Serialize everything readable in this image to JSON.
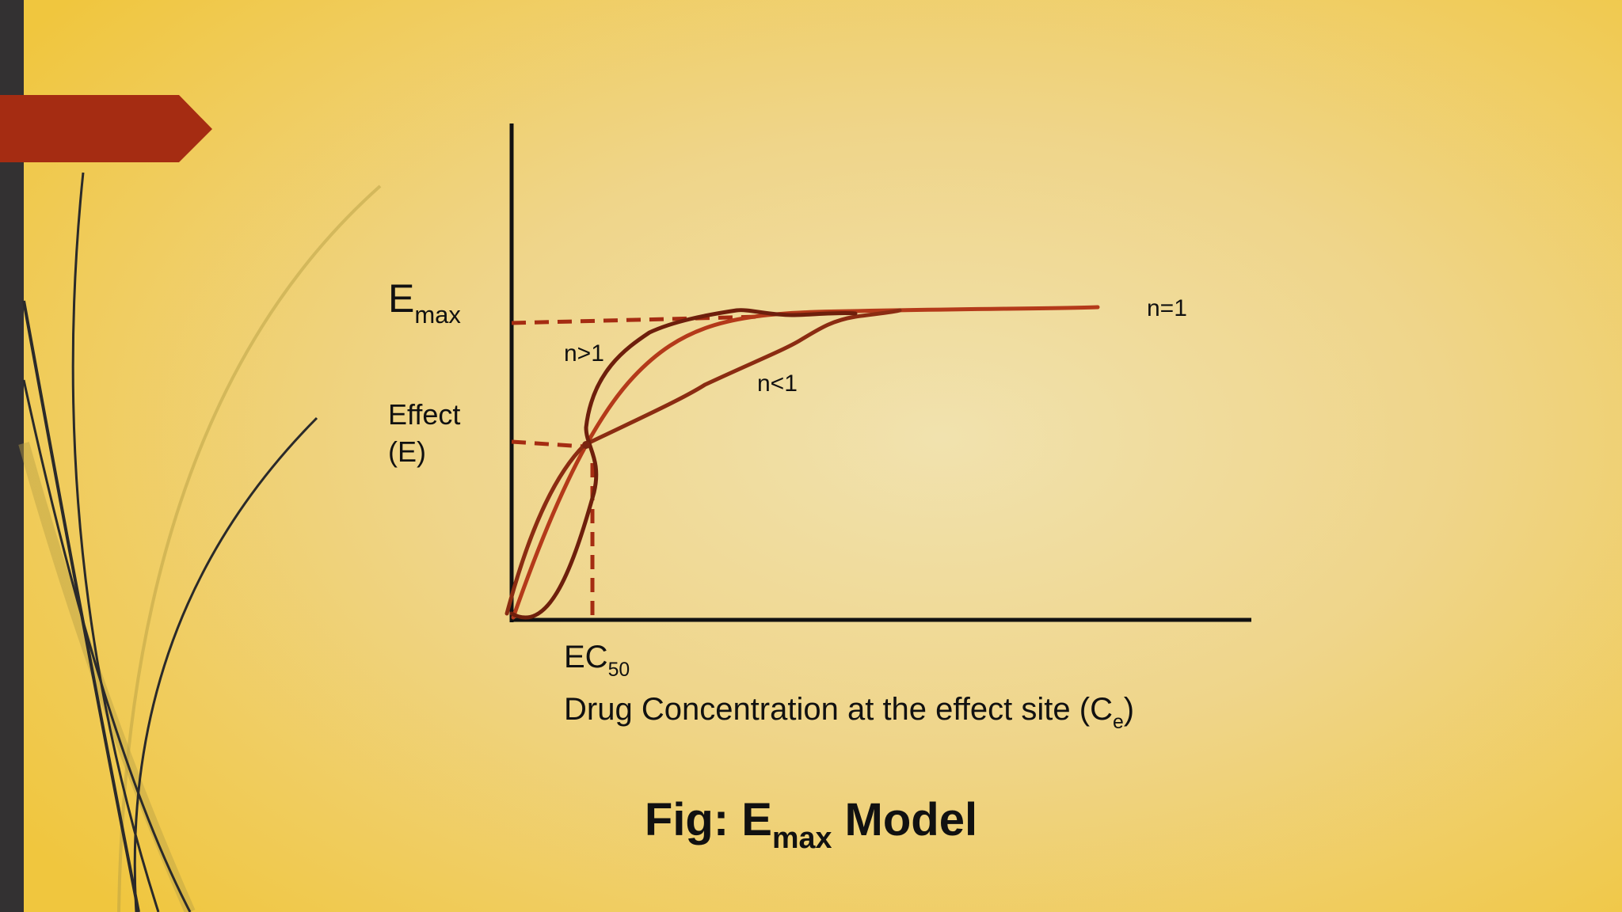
{
  "diagram": {
    "y_label_top": {
      "main": "E",
      "sub": "max"
    },
    "y_label_mid": [
      "Effect",
      "(E)"
    ],
    "x_tick_label": {
      "main": "EC",
      "sub": "50"
    },
    "x_axis_label": {
      "main": "Drug Concentration at the effect site (C",
      "sub": "e",
      "tail": ")"
    },
    "curve_labels": {
      "n_gt_1": "n>1",
      "n_lt_1": "n<1",
      "n_eq_1": "n=1"
    },
    "colors": {
      "curve_light": "#b43a1a",
      "curve_dark": "#7a2410",
      "axis": "#111111",
      "accent_arrow": "#a52c12",
      "sidebar": "#333132"
    }
  },
  "caption": {
    "prefix": "Fig: E",
    "sub": "max",
    "suffix": " Model"
  }
}
